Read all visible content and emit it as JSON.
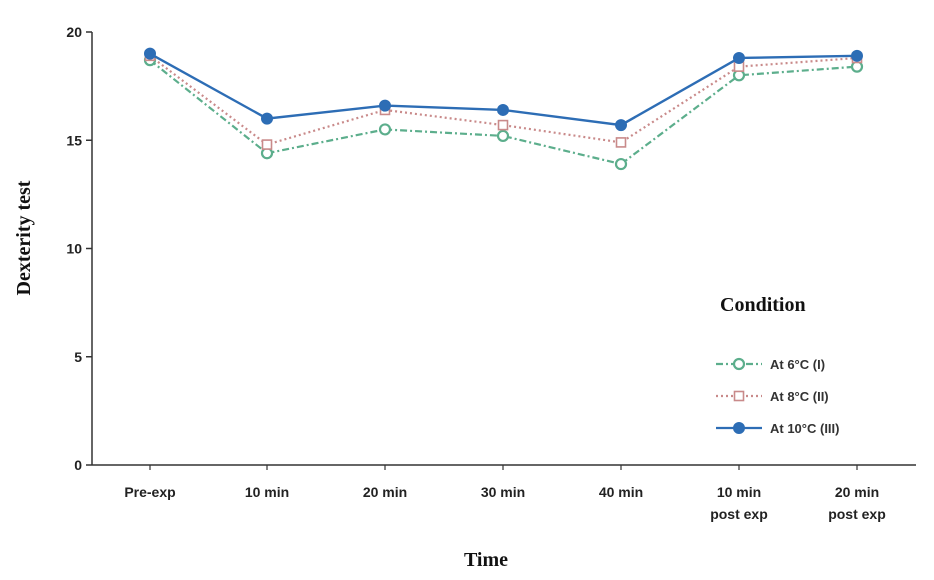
{
  "chart_data": {
    "type": "line",
    "xlabel": "Time",
    "ylabel": "Dexterity test",
    "ylim": [
      0,
      20
    ],
    "yticks": [
      0,
      5,
      10,
      15,
      20
    ],
    "categories": [
      [
        "Pre-exp"
      ],
      [
        "10 min"
      ],
      [
        "20 min"
      ],
      [
        "30 min"
      ],
      [
        "40 min"
      ],
      [
        "10 min",
        "post exp"
      ],
      [
        "20 min",
        "post exp"
      ]
    ],
    "legend": {
      "title": "Condition",
      "position": "right"
    },
    "series": [
      {
        "name": "At 6°C (I)",
        "color": "#5cae8c",
        "style": "dash-dot",
        "marker": "diamond",
        "values": [
          18.7,
          14.4,
          15.5,
          15.2,
          13.9,
          18.0,
          18.4
        ]
      },
      {
        "name": "At 8°C (II)",
        "color": "#c98a8a",
        "style": "dotted",
        "marker": "square",
        "values": [
          18.9,
          14.8,
          16.4,
          15.7,
          14.9,
          18.4,
          18.8
        ]
      },
      {
        "name": "At 10°C (III)",
        "color": "#2d6db5",
        "style": "solid",
        "marker": "circle",
        "values": [
          19.0,
          16.0,
          16.6,
          16.4,
          15.7,
          18.8,
          18.9
        ]
      }
    ]
  }
}
